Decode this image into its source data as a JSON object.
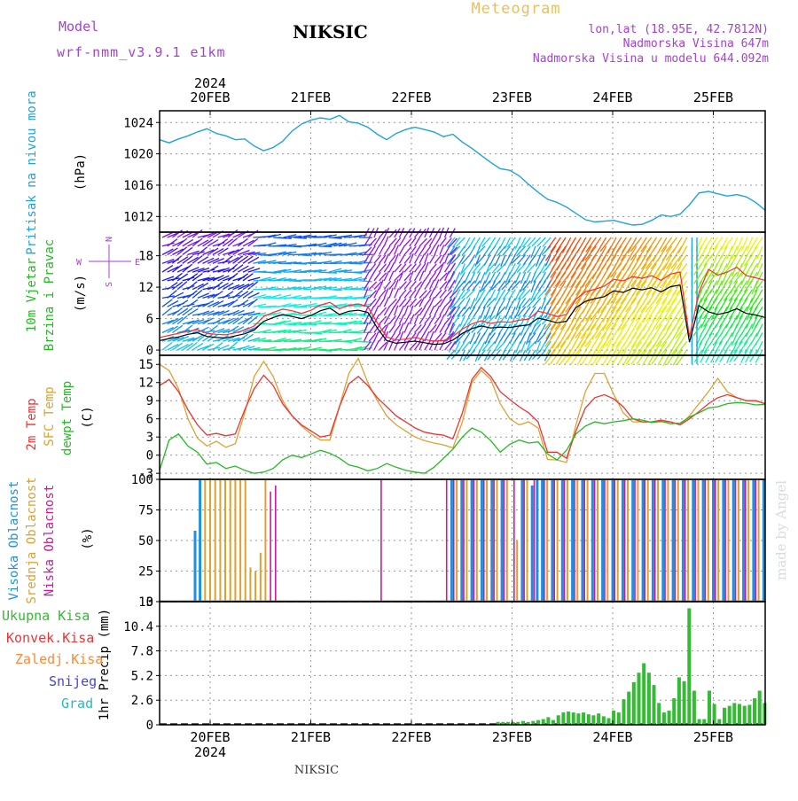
{
  "header": {
    "model_label": "Model",
    "model_name": "wrf-nmm_v3.9.1 e1km",
    "station": "NIKSIC",
    "meteogram": "Meteogram",
    "coords": "lon,lat (18.95E, 42.7812N)",
    "elev": "Nadmorska Visina 647m",
    "elev_model": "Nadmorska Visina u modelu 644.092m",
    "footer": "NIKSIC",
    "signature": "made by Angel"
  },
  "colors": {
    "pressure": "#1ea3e0",
    "wind_black": "#000000",
    "wind_red": "#ff2a2a",
    "t2m": "#ee3333",
    "sfc": "#e0a030",
    "dewpt": "#22bb22",
    "high": "#1e90e0",
    "mid": "#e0a030",
    "low": "#cc1a9a",
    "total": "#33bb33",
    "conv": "#ee3333",
    "frozen": "#ff8833",
    "snow": "#4444dd",
    "grad": "#22bbbb"
  },
  "chart_data": [
    {
      "type": "line",
      "id": "pressure",
      "ylabel": "Pritisak na nivou mora",
      "unit": "(hPa)",
      "ylim": [
        1010,
        1025.5
      ],
      "yticks": [
        1012,
        1016,
        1020,
        1024
      ],
      "x_top_ticks": [
        "20FEB",
        "21FEB",
        "22FEB",
        "23FEB",
        "24FEB",
        "25FEB"
      ],
      "top_year": "2024",
      "series": [
        {
          "values": [
            1021.8,
            1021.4,
            1021.9,
            1022.3,
            1022.8,
            1023.2,
            1022.6,
            1022.3,
            1021.8,
            1021.9,
            1021.0,
            1020.4,
            1020.8,
            1021.6,
            1022.9,
            1023.8,
            1024.3,
            1024.6,
            1024.4,
            1024.9,
            1024.1,
            1023.9,
            1023.4,
            1022.5,
            1021.8,
            1022.6,
            1023.1,
            1023.4,
            1023.1,
            1022.8,
            1022.2,
            1022.5,
            1021.5,
            1020.7,
            1019.8,
            1018.9,
            1018.1,
            1017.9,
            1017.2,
            1016.1,
            1015.1,
            1014.2,
            1013.8,
            1013.2,
            1012.4,
            1011.6,
            1011.3,
            1011.4,
            1011.5,
            1011.2,
            1010.9,
            1011.0,
            1011.5,
            1012.2,
            1012.0,
            1012.3,
            1013.5,
            1015.0,
            1015.2,
            1014.9,
            1014.6,
            1014.8,
            1014.5,
            1013.8,
            1012.8
          ]
        }
      ]
    },
    {
      "type": "line",
      "id": "wind",
      "ylabel": "10m Vjetar",
      "ylabel2": "Brzina i Pravac",
      "unit": "(m/s)",
      "compass_n": "N",
      "compass_s": "S",
      "compass_w": "W",
      "compass_e": "E",
      "ylim": [
        -1,
        22.5
      ],
      "yticks": [
        0,
        6,
        12,
        18
      ],
      "series": [
        {
          "values": [
            1.8,
            2.2,
            2.5,
            3.0,
            3.3,
            2.6,
            2.4,
            2.3,
            2.7,
            3.1,
            3.8,
            5.5,
            6.2,
            6.8,
            6.4,
            6.0,
            6.6,
            7.5,
            8.0,
            6.8,
            7.4,
            7.6,
            7.2,
            4.2,
            1.8,
            1.3,
            1.5,
            1.7,
            1.4,
            1.1,
            1.2,
            1.9,
            3.2,
            4.1,
            4.6,
            4.2,
            4.4,
            4.3,
            4.6,
            4.8,
            6.1,
            5.7,
            5.2,
            5.5,
            8.1,
            9.3,
            9.8,
            10.2,
            11.3,
            11.0,
            11.8,
            11.5,
            11.9,
            11.1,
            12.1,
            12.4,
            1.5,
            8.5,
            7.3,
            6.8,
            7.2,
            7.9,
            7.0,
            6.7,
            6.2
          ]
        },
        {
          "values": [
            2.4,
            2.8,
            3.2,
            3.6,
            3.9,
            3.2,
            3.0,
            2.9,
            3.3,
            3.8,
            4.6,
            6.4,
            7.2,
            7.8,
            7.5,
            7.0,
            7.6,
            8.6,
            9.1,
            7.9,
            8.5,
            8.8,
            8.3,
            5.2,
            2.5,
            1.9,
            2.1,
            2.4,
            2.0,
            1.7,
            1.8,
            2.6,
            4.0,
            5.0,
            5.6,
            5.1,
            5.4,
            5.3,
            5.7,
            5.9,
            7.4,
            7.0,
            6.4,
            6.8,
            9.7,
            11.1,
            11.6,
            12.2,
            13.5,
            13.2,
            14.0,
            13.7,
            14.2,
            13.3,
            14.5,
            14.9,
            2.5,
            11.0,
            15.4,
            14.3,
            14.9,
            15.8,
            14.2,
            13.8,
            13.3
          ]
        }
      ]
    },
    {
      "type": "line",
      "id": "temp",
      "ylabel": "2m Temp",
      "ylabel2": "SFC Temp",
      "ylabel3": "dewpt Temp",
      "unit": "(C)",
      "ylim": [
        -4,
        16.5
      ],
      "yticks": [
        -3,
        0,
        3,
        6,
        9,
        12,
        15
      ],
      "series": [
        {
          "name": "2m Temp",
          "values": [
            11.5,
            12.5,
            10.5,
            7.5,
            5.0,
            3.3,
            3.6,
            3.2,
            3.5,
            7.5,
            11.0,
            13.2,
            11.5,
            8.5,
            6.5,
            5.0,
            4.0,
            3.0,
            3.3,
            8.0,
            11.8,
            13.0,
            11.5,
            9.5,
            8.0,
            6.5,
            5.5,
            4.5,
            3.8,
            3.5,
            3.3,
            2.7,
            7.0,
            12.5,
            14.5,
            13.0,
            10.5,
            9.2,
            8.0,
            7.0,
            5.5,
            0.5,
            0.5,
            -0.5,
            4.0,
            7.8,
            9.5,
            10.0,
            9.3,
            8.0,
            6.0,
            5.5,
            5.5,
            5.8,
            5.5,
            5.0,
            6.0,
            7.2,
            8.5,
            9.5,
            10.0,
            9.5,
            9.0,
            9.0,
            8.5
          ]
        },
        {
          "name": "SFC Temp",
          "values": [
            15.0,
            14.0,
            11.0,
            6.0,
            2.8,
            1.5,
            2.3,
            1.3,
            1.9,
            7.0,
            13.0,
            15.5,
            13.0,
            9.0,
            6.5,
            4.8,
            3.5,
            2.5,
            2.5,
            8.0,
            13.5,
            16.0,
            12.0,
            9.0,
            6.5,
            5.0,
            4.0,
            3.0,
            2.4,
            2.0,
            1.7,
            1.2,
            5.5,
            12.0,
            14.0,
            12.5,
            8.5,
            6.0,
            5.0,
            5.5,
            4.5,
            -0.7,
            -0.8,
            -1.2,
            5.0,
            10.5,
            13.5,
            13.5,
            10.0,
            7.0,
            5.5,
            5.5,
            5.5,
            5.5,
            5.5,
            5.0,
            6.5,
            8.5,
            10.5,
            12.7,
            10.5,
            9.5,
            9.0,
            9.0,
            8.5
          ]
        },
        {
          "name": "dewpt Temp",
          "values": [
            -2.5,
            2.5,
            3.5,
            1.5,
            0.5,
            -1.5,
            -1.2,
            -2.2,
            -1.8,
            -2.5,
            -3.0,
            -2.8,
            -2.2,
            -0.8,
            0.0,
            -0.4,
            0.2,
            0.8,
            0.3,
            -0.5,
            -1.6,
            -2.0,
            -2.6,
            -2.2,
            -1.4,
            -2.0,
            -2.5,
            -2.8,
            -3.0,
            -2.0,
            -0.5,
            1.0,
            3.0,
            4.5,
            3.8,
            2.4,
            0.5,
            1.8,
            2.5,
            2.0,
            2.2,
            0.2,
            -0.8,
            0.8,
            3.5,
            4.8,
            5.5,
            5.2,
            5.5,
            5.7,
            6.0,
            5.8,
            5.4,
            5.6,
            5.2,
            5.3,
            6.3,
            7.0,
            7.8,
            8.0,
            8.5,
            8.7,
            8.6,
            8.3,
            8.4
          ]
        }
      ]
    },
    {
      "type": "bar",
      "id": "cloud",
      "ylabel": "Visoka Oblacnost",
      "ylabel2": "Srednja Oblacnost",
      "ylabel3": "Niska Oblacnost",
      "unit": "(%)",
      "ylim": [
        0,
        100
      ],
      "yticks": [
        0,
        25,
        50,
        75,
        100
      ],
      "series": [
        {
          "name": "Visoka Oblacnost",
          "x": [
            19.85,
            19.9,
            22.4,
            22.5,
            22.6,
            22.7,
            22.8,
            22.9,
            23.1,
            23.2,
            23.25,
            23.3,
            23.4,
            23.5,
            23.6,
            23.7,
            23.8,
            23.9,
            24.0,
            24.1,
            24.2,
            24.3,
            24.4,
            24.5,
            24.6,
            24.7,
            24.8,
            24.9,
            25.0,
            25.1,
            25.2,
            25.3,
            25.4,
            25.5
          ],
          "values": [
            58,
            100,
            100,
            100,
            100,
            100,
            100,
            100,
            100,
            95,
            100,
            100,
            100,
            100,
            100,
            100,
            100,
            100,
            100,
            100,
            100,
            100,
            100,
            100,
            100,
            100,
            100,
            100,
            100,
            100,
            100,
            100,
            100,
            100
          ]
        },
        {
          "name": "Srednja Oblacnost",
          "x": [
            19.95,
            20.0,
            20.05,
            20.1,
            20.15,
            20.2,
            20.25,
            20.3,
            20.35,
            20.4,
            20.45,
            20.5,
            20.55,
            22.45,
            22.55,
            22.65,
            22.75,
            22.85,
            22.95,
            23.05,
            23.15,
            23.35,
            23.45,
            23.55,
            23.65,
            23.75,
            23.85,
            23.95,
            24.05,
            24.15,
            24.25,
            24.35,
            24.45,
            24.55,
            24.65,
            24.75,
            24.85,
            24.95,
            25.05,
            25.15,
            25.25,
            25.35,
            25.45
          ],
          "values": [
            100,
            100,
            100,
            100,
            100,
            100,
            100,
            100,
            100,
            28,
            25,
            40,
            100,
            100,
            100,
            100,
            100,
            100,
            100,
            50,
            100,
            100,
            100,
            100,
            100,
            100,
            100,
            100,
            100,
            100,
            100,
            100,
            100,
            100,
            100,
            100,
            100,
            100,
            100,
            100,
            100,
            100,
            100
          ]
        },
        {
          "name": "Niska Oblacnost",
          "x": [
            20.6,
            20.65,
            21.7,
            22.35,
            22.42,
            22.52,
            22.62,
            22.72,
            22.82,
            22.92,
            23.02,
            23.12,
            23.22,
            23.32,
            23.42,
            23.52,
            23.62,
            23.72,
            23.82,
            23.92,
            24.02,
            24.12,
            24.22,
            24.32,
            24.42,
            24.52,
            24.62,
            24.72,
            24.82,
            24.92,
            25.02,
            25.12,
            25.22,
            25.32,
            25.42
          ],
          "values": [
            90,
            95,
            100,
            100,
            100,
            100,
            100,
            100,
            100,
            100,
            100,
            100,
            100,
            100,
            100,
            100,
            100,
            100,
            100,
            100,
            100,
            100,
            100,
            100,
            100,
            100,
            100,
            100,
            100,
            100,
            100,
            100,
            100,
            100,
            100
          ]
        }
      ]
    },
    {
      "type": "bar",
      "id": "precip",
      "ylabel": "1hr Precip (mm)",
      "legend": [
        "Ukupna Kisa",
        "Konvek.Kisa",
        "Zaledj.Kisa",
        "Snijeg",
        "Grad"
      ],
      "ylim": [
        0,
        13
      ],
      "yticks": [
        0,
        2.6,
        5.2,
        7.8,
        10.4,
        13
      ],
      "ytick_labels": [
        "0",
        "2.6",
        "5.2",
        "7.8",
        "10.4",
        "13"
      ],
      "x_bottom_ticks": [
        "20FEB",
        "21FEB",
        "22FEB",
        "23FEB",
        "24FEB",
        "25FEB"
      ],
      "bottom_year": "2024",
      "x": [
        22.86,
        22.91,
        22.96,
        23.01,
        23.06,
        23.11,
        23.16,
        23.21,
        23.26,
        23.31,
        23.36,
        23.41,
        23.46,
        23.51,
        23.56,
        23.61,
        23.66,
        23.71,
        23.76,
        23.81,
        23.86,
        23.91,
        23.96,
        24.01,
        24.06,
        24.11,
        24.16,
        24.21,
        24.26,
        24.31,
        24.36,
        24.41,
        24.46,
        24.51,
        24.56,
        24.61,
        24.66,
        24.71,
        24.76,
        24.81,
        24.86,
        24.91,
        24.96,
        25.01,
        25.06,
        25.11,
        25.16,
        25.21,
        25.26,
        25.31,
        25.36,
        25.41,
        25.46,
        25.51
      ],
      "values": [
        0.3,
        0.3,
        0.3,
        0.3,
        0.3,
        0.4,
        0.3,
        0.4,
        0.5,
        0.6,
        0.8,
        0.5,
        1.0,
        1.3,
        1.4,
        1.3,
        1.2,
        1.3,
        1.1,
        1.0,
        1.2,
        0.9,
        0.7,
        1.5,
        1.3,
        2.7,
        3.5,
        4.5,
        5.5,
        6.5,
        5.5,
        4.2,
        2.3,
        1.3,
        1.5,
        2.8,
        5.0,
        4.6,
        12.3,
        3.6,
        0.6,
        0.6,
        3.6,
        2.2,
        0.6,
        1.8,
        2.0,
        2.3,
        2.2,
        2.0,
        2.1,
        2.8,
        3.6,
        2.3
      ]
    }
  ]
}
